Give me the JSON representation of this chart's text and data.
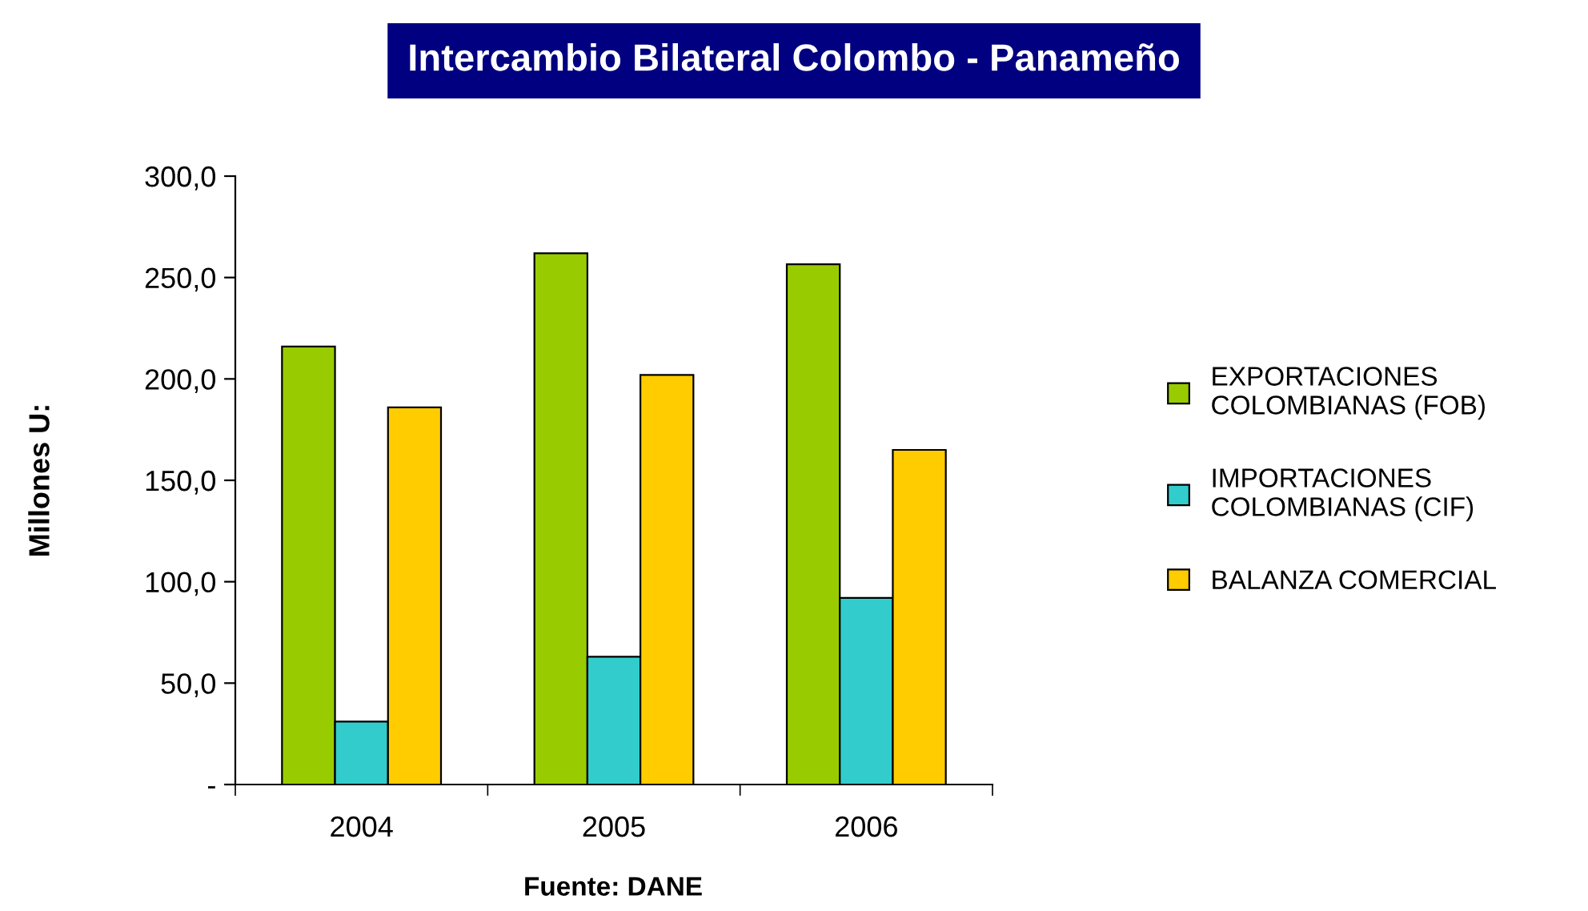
{
  "chart_data": {
    "type": "bar",
    "title": "Intercambio Bilateral Colombo - Panameño",
    "ylabel": "Millones U:",
    "categories": [
      "2004",
      "2005",
      "2006"
    ],
    "series": [
      {
        "name": "EXPORTACIONES\nCOLOMBIANAS (FOB)",
        "color": "#99cc00",
        "values": [
          216,
          262,
          256.5
        ]
      },
      {
        "name": "IMPORTACIONES\nCOLOMBIANAS (CIF)",
        "color": "#33cccc",
        "values": [
          31,
          63,
          92
        ]
      },
      {
        "name": "BALANZA COMERCIAL",
        "color": "#ffcc00",
        "values": [
          186,
          202,
          165
        ]
      }
    ],
    "ylim": [
      0,
      300
    ],
    "yticks": [
      {
        "value": 0,
        "label": "-"
      },
      {
        "value": 50,
        "label": "50,0"
      },
      {
        "value": 100,
        "label": "100,0"
      },
      {
        "value": 150,
        "label": "150,0"
      },
      {
        "value": 200,
        "label": "200,0"
      },
      {
        "value": 250,
        "label": "250,0"
      },
      {
        "value": 300,
        "label": "300,0"
      }
    ],
    "grid": false,
    "legend": "right",
    "annotations": [
      "Fuente: DANE"
    ]
  }
}
